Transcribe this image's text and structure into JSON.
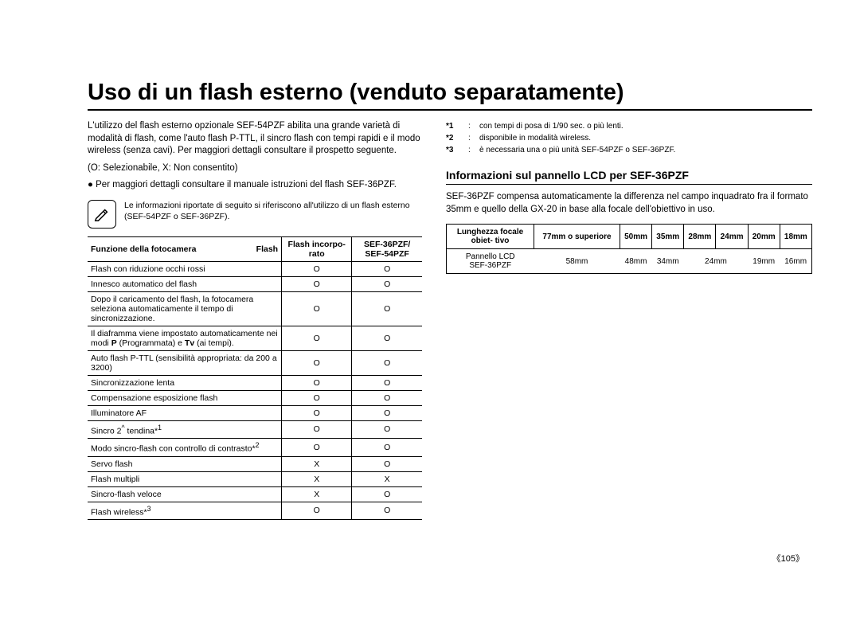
{
  "title": "Uso di un flash esterno (venduto separatamente)",
  "intro": "L'utilizzo del flash esterno opzionale SEF-54PZF abilita una grande varietà di modalità di flash, come l'auto flash P-TTL, il sincro flash con tempi rapidi e il modo wireless (senza cavi). Per maggiori dettagli consultare il prospetto seguente.",
  "legend": "(O: Selezionabile, X: Non consentito)",
  "bullet": "● Per maggiori dettagli consultare il manuale istruzioni del flash SEF-36PZF.",
  "noteText": "Le informazioni riportate di seguito si riferiscono all'utilizzo di un flash esterno (SEF-54PZF o SEF-36PZF).",
  "funcTable": {
    "headers": {
      "c1_pre": "Funzione della fotocamera",
      "c1_right": "Flash",
      "c2": "Flash incorpo- rato",
      "c3": "SEF-36PZF/ SEF-54PZF"
    },
    "rows": [
      {
        "f": "Flash con riduzione occhi rossi",
        "a": "O",
        "b": "O"
      },
      {
        "f": "Innesco automatico del flash",
        "a": "O",
        "b": "O"
      },
      {
        "f": "Dopo il caricamento del flash, la fotocamera seleziona automaticamente il tempo di sincronizzazione.",
        "a": "O",
        "b": "O"
      },
      {
        "f": "Il diaframma viene impostato automaticamente nei modi P  (Programmata) e Tv  (ai tempi).",
        "a": "O",
        "b": "O"
      },
      {
        "f": "Auto flash P-TTL (sensibilità appropriata: da 200 a 3200)",
        "a": "O",
        "b": "O"
      },
      {
        "f": "Sincronizzazione lenta",
        "a": "O",
        "b": "O"
      },
      {
        "f": "Compensazione esposizione flash",
        "a": "O",
        "b": "O"
      },
      {
        "f": "Illuminatore AF",
        "a": "O",
        "b": "O"
      },
      {
        "f": "Sincro 2^ tendina*1",
        "a": "O",
        "b": "O"
      },
      {
        "f": "Modo sincro-flash con controllo di contrasto*2",
        "a": "O",
        "b": "O"
      },
      {
        "f": "Servo flash",
        "a": "X",
        "b": "O"
      },
      {
        "f": "Flash multipli",
        "a": "X",
        "b": "X"
      },
      {
        "f": "Sincro-flash veloce",
        "a": "X",
        "b": "O"
      },
      {
        "f": "Flash wireless*3",
        "a": "O",
        "b": "O"
      }
    ]
  },
  "footnotes": [
    {
      "star": "*1",
      "text": "con tempi di posa di 1/90 sec. o più lenti."
    },
    {
      "star": "*2",
      "text": "disponibile in modalità wireless."
    },
    {
      "star": "*3",
      "text": "è necessaria una o più unità SEF-54PZF o SEF-36PZF."
    }
  ],
  "section2": {
    "heading": "Informazioni sul pannello LCD per SEF-36PZF",
    "para": "SEF-36PZF compensa automaticamente la differenza nel campo inquadrato fra il formato 35mm e quello della GX-20 in base alla focale dell'obiettivo in uso."
  },
  "focalTable": {
    "headers": [
      "Lunghezza focale obiet- tivo",
      "77mm o superiore",
      "50mm",
      "35mm",
      "28mm",
      "24mm",
      "20mm",
      "18mm"
    ],
    "row": {
      "label": "Pannello LCD SEF-36PZF",
      "cells": [
        "58mm",
        "48mm",
        "34mm",
        "24mm",
        "",
        "19mm",
        "16mm"
      ]
    }
  },
  "pageNumber": "《105》",
  "colors": {
    "text": "#000000",
    "bg": "#ffffff",
    "border": "#000000"
  }
}
